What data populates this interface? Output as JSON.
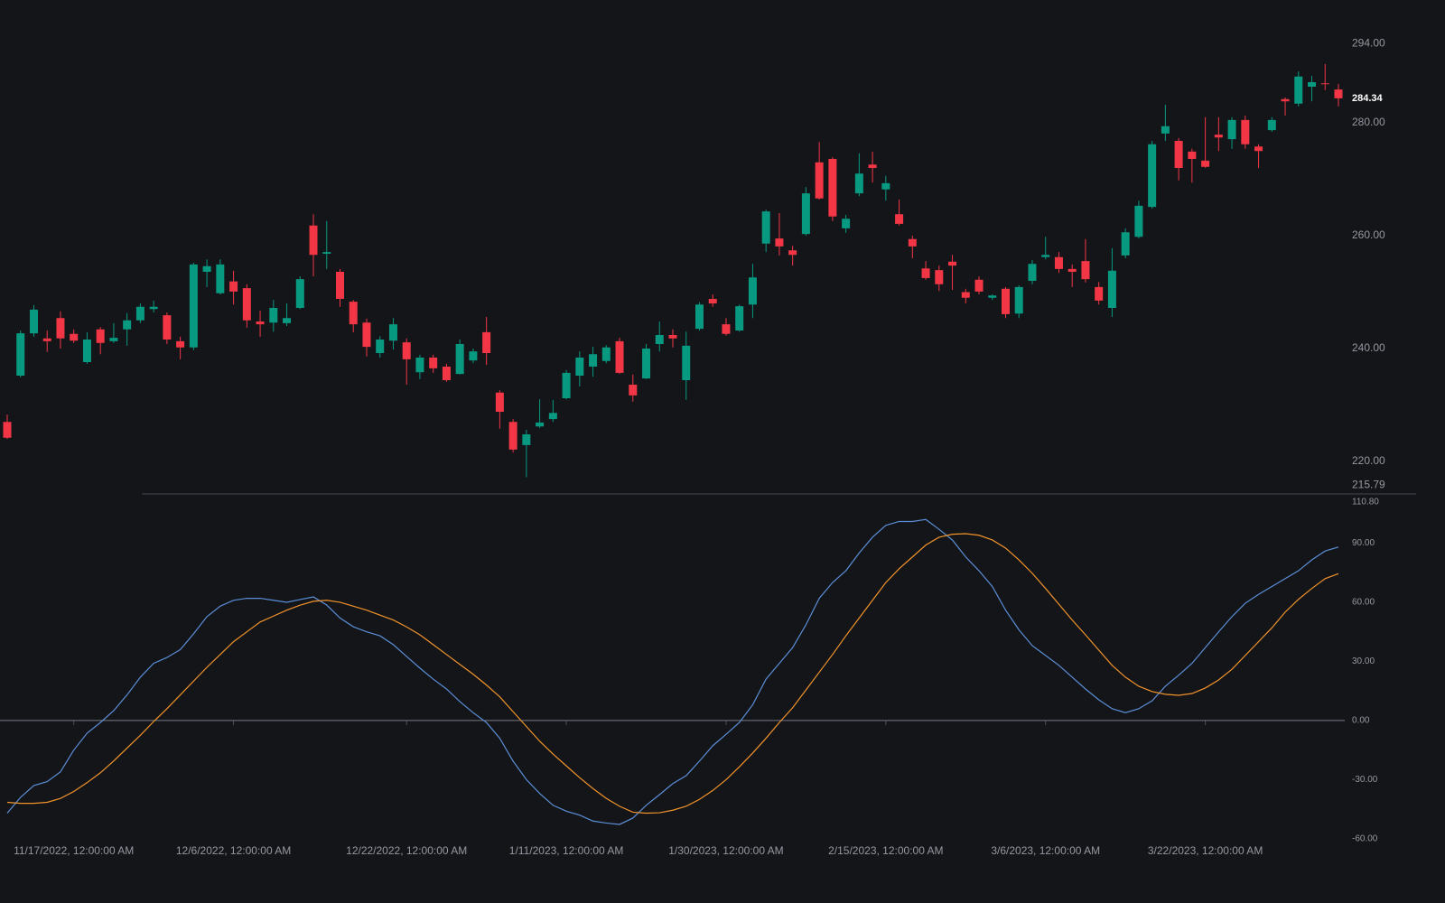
{
  "chart_data": [
    {
      "type": "candlestick",
      "categories": [
        null,
        null,
        null,
        null,
        null,
        "11/17/2022, 12:00:00 AM",
        null,
        null,
        null,
        null,
        null,
        null,
        null,
        null,
        null,
        null,
        null,
        "12/6/2022, 12:00:00 AM",
        null,
        null,
        null,
        null,
        null,
        null,
        null,
        null,
        null,
        null,
        null,
        null,
        "12/22/2022, 12:00:00 AM",
        null,
        null,
        null,
        null,
        null,
        null,
        null,
        null,
        null,
        null,
        null,
        "1/11/2023, 12:00:00 AM",
        null,
        null,
        null,
        null,
        null,
        null,
        null,
        null,
        null,
        null,
        null,
        "1/30/2023, 12:00:00 AM",
        null,
        null,
        null,
        null,
        null,
        null,
        null,
        null,
        null,
        null,
        null,
        "2/15/2023, 12:00:00 AM",
        null,
        null,
        null,
        null,
        null,
        null,
        null,
        null,
        null,
        null,
        null,
        "3/6/2023, 12:00:00 AM",
        null,
        null,
        null,
        null,
        null,
        null,
        null,
        null,
        null,
        null,
        null,
        "3/22/2023, 12:00:00 AM",
        null,
        null,
        null,
        null,
        null,
        null,
        null,
        null,
        null,
        null
      ],
      "open": [
        227.0,
        235.2,
        242.7,
        241.8,
        245.4,
        242.6,
        237.6,
        243.4,
        241.3,
        243.4,
        245.0,
        247.0,
        245.9,
        241.3,
        240.2,
        253.6,
        249.8,
        251.9,
        250.7,
        244.8,
        244.6,
        244.5,
        247.2,
        261.8,
        256.8,
        253.6,
        248.3,
        244.6,
        239.2,
        241.4,
        241.1,
        235.8,
        238.4,
        236.8,
        235.5,
        237.9,
        242.9,
        232.2,
        227.0,
        222.9,
        226.2,
        227.5,
        231.2,
        235.2,
        236.8,
        237.8,
        241.3,
        233.6,
        234.7,
        240.8,
        242.4,
        234.4,
        243.5,
        248.8,
        244.3,
        243.2,
        247.8,
        258.6,
        259.5,
        257.4,
        260.3,
        273.0,
        273.6,
        261.3,
        267.5,
        272.6,
        268.2,
        263.8,
        259.4,
        254.2,
        253.9,
        255.4,
        250.0,
        252.2,
        249.0,
        250.6,
        246.2,
        252.0,
        256.2,
        256.2,
        254.1,
        255.5,
        250.9,
        247.2,
        256.5,
        259.8,
        265.1,
        278.1,
        276.8,
        274.9,
        273.3,
        277.9,
        277.1,
        280.5,
        275.8,
        278.7,
        284.2,
        283.4,
        286.4,
        287.0,
        285.9
      ],
      "high": [
        228.3,
        243.2,
        247.7,
        243.2,
        246.6,
        243.4,
        242.9,
        243.8,
        244.5,
        246.3,
        248.0,
        248.5,
        246.4,
        242.1,
        255.2,
        255.8,
        255.8,
        253.8,
        251.4,
        246.7,
        248.6,
        248.0,
        252.8,
        263.8,
        262.6,
        254.1,
        248.6,
        245.3,
        242.2,
        245.4,
        241.8,
        238.9,
        238.9,
        237.3,
        241.6,
        240.0,
        245.6,
        232.6,
        227.5,
        225.6,
        231.0,
        230.9,
        236.2,
        239.5,
        240.3,
        240.6,
        241.9,
        235.4,
        240.8,
        244.8,
        243.4,
        243.0,
        248.2,
        249.6,
        245.4,
        247.8,
        255.0,
        264.6,
        264.0,
        258.2,
        268.6,
        276.6,
        273.9,
        263.7,
        274.6,
        274.9,
        270.6,
        266.4,
        260.0,
        255.5,
        254.7,
        256.6,
        250.6,
        252.8,
        249.6,
        250.9,
        251.2,
        255.7,
        259.8,
        257.1,
        254.9,
        259.4,
        251.8,
        257.8,
        261.3,
        266.2,
        276.8,
        283.2,
        277.3,
        275.4,
        281.0,
        281.0,
        281.0,
        281.3,
        276.2,
        281.0,
        284.5,
        289.1,
        288.3,
        290.4,
        286.9
      ],
      "low": [
        224.0,
        234.9,
        242.1,
        239.4,
        240.0,
        241.0,
        237.3,
        239.0,
        241.0,
        240.5,
        244.5,
        246.4,
        240.8,
        238.1,
        239.7,
        250.9,
        249.6,
        247.8,
        243.7,
        242.1,
        243.0,
        244.0,
        247.0,
        252.8,
        254.1,
        247.4,
        242.9,
        238.6,
        238.4,
        239.8,
        233.6,
        234.6,
        235.7,
        234.1,
        235.4,
        237.4,
        237.1,
        225.8,
        221.6,
        217.2,
        225.9,
        227.0,
        231.0,
        233.3,
        235.0,
        237.4,
        235.5,
        230.6,
        234.6,
        239.5,
        240.2,
        230.9,
        243.2,
        247.4,
        242.3,
        243.0,
        245.4,
        257.1,
        256.5,
        254.7,
        260.0,
        266.4,
        262.6,
        260.5,
        267.0,
        269.4,
        266.2,
        261.8,
        256.0,
        252.2,
        250.2,
        250.4,
        248.0,
        249.6,
        248.6,
        245.4,
        245.4,
        251.4,
        255.8,
        253.4,
        250.9,
        251.7,
        247.8,
        245.6,
        256.0,
        259.5,
        264.8,
        276.8,
        269.8,
        269.4,
        272.0,
        275.0,
        275.4,
        275.4,
        272.0,
        278.4,
        281.3,
        282.9,
        283.8,
        285.8,
        282.9
      ],
      "close": [
        224.2,
        242.7,
        246.9,
        241.3,
        241.8,
        241.4,
        241.6,
        241.0,
        241.9,
        245.0,
        247.4,
        247.4,
        241.6,
        240.2,
        254.9,
        254.6,
        254.9,
        250.1,
        245.0,
        244.3,
        247.2,
        245.4,
        252.3,
        256.6,
        257.1,
        248.8,
        244.3,
        240.3,
        241.6,
        244.3,
        238.1,
        238.4,
        236.5,
        234.4,
        240.8,
        239.5,
        239.2,
        228.8,
        222.1,
        224.8,
        226.9,
        228.6,
        235.7,
        238.4,
        239.0,
        240.2,
        235.7,
        231.7,
        240.0,
        242.4,
        241.8,
        240.5,
        247.8,
        248.0,
        242.6,
        247.5,
        252.6,
        264.3,
        258.1,
        256.6,
        267.5,
        266.6,
        263.4,
        263.0,
        271.0,
        272.0,
        269.3,
        262.1,
        258.1,
        252.5,
        251.4,
        254.7,
        249.0,
        250.1,
        249.4,
        246.1,
        250.9,
        255.0,
        256.6,
        254.1,
        253.6,
        252.3,
        248.5,
        253.8,
        260.6,
        265.3,
        276.2,
        279.4,
        272.0,
        273.6,
        272.2,
        277.4,
        280.5,
        276.2,
        275.0,
        280.5,
        283.8,
        288.2,
        287.2,
        286.9,
        284.34
      ],
      "up_color": "#089981",
      "down_color": "#f23645",
      "ylim": [
        214.4,
        301.76
      ],
      "yticks": [
        {
          "value": 294,
          "label": "294.00"
        },
        {
          "value": 280,
          "label": "280.00"
        },
        {
          "value": 260,
          "label": "260.00"
        },
        {
          "value": 240,
          "label": "240.00"
        },
        {
          "value": 220,
          "label": "220.00"
        },
        {
          "value": 215.79,
          "label": "215.79"
        }
      ],
      "last_price": {
        "value": 284.34,
        "label": "284.34"
      }
    },
    {
      "type": "line",
      "series": [
        {
          "color": "#5b8ed6",
          "values": [
            -47,
            -39,
            -33,
            -31,
            -26,
            -15,
            -6.4,
            -1,
            5,
            13,
            22,
            29,
            32,
            36,
            44,
            52.7,
            58,
            61,
            62,
            62,
            61,
            60,
            61.4,
            62.7,
            58.6,
            52,
            47.6,
            45,
            43,
            38.5,
            32.5,
            26.6,
            21,
            16,
            9.6,
            4,
            -1,
            -9,
            -20.6,
            -30,
            -37,
            -43,
            -46,
            -48,
            -51,
            -52,
            -52.7,
            -49.5,
            -43,
            -37.6,
            -32,
            -28,
            -20.6,
            -12.8,
            -7,
            -1,
            8,
            21,
            29,
            37,
            48.6,
            62,
            70,
            76,
            85,
            93,
            99,
            101,
            101,
            102,
            97,
            91.6,
            83,
            76,
            68,
            56,
            46,
            38,
            33,
            28,
            22,
            16,
            10.5,
            6,
            4,
            6,
            10,
            17.4,
            23,
            29,
            37,
            45,
            52.7,
            59.5,
            64,
            68,
            72,
            76,
            81.5,
            86,
            88
          ]
        },
        {
          "color": "#f0932b",
          "values": [
            -41.5,
            -42,
            -42,
            -41.5,
            -39.5,
            -36,
            -31.5,
            -26.5,
            -20.5,
            -14,
            -7.5,
            -0.5,
            6,
            13,
            20,
            27,
            33.5,
            40,
            45,
            50,
            53,
            56,
            58.5,
            60.5,
            61,
            60,
            58,
            56,
            53.5,
            51,
            47.5,
            43.5,
            38.5,
            33.5,
            28.5,
            23.5,
            18,
            12,
            4.5,
            -3,
            -10.5,
            -17,
            -23,
            -29,
            -34.5,
            -39.5,
            -43.5,
            -46.5,
            -47,
            -46.8,
            -45.5,
            -43.5,
            -40,
            -35.5,
            -30,
            -23.5,
            -16.5,
            -9,
            -1,
            6.5,
            15.5,
            24.5,
            33.5,
            43,
            52,
            61,
            70,
            77,
            83,
            89,
            93,
            94.5,
            94.8,
            94,
            91.6,
            87.5,
            81.5,
            74.7,
            67,
            59,
            51,
            43.5,
            35.7,
            28,
            22,
            17.4,
            14.7,
            13.3,
            12.8,
            13.7,
            16.5,
            20.6,
            26,
            33,
            40,
            47,
            55,
            61.5,
            67,
            72,
            74.5
          ]
        }
      ],
      "ylim": [
        -62.8,
        114.5
      ],
      "yticks": [
        {
          "value": 110.8,
          "label": "110.80"
        },
        {
          "value": 90,
          "label": "90.00"
        },
        {
          "value": 60,
          "label": "60.00"
        },
        {
          "value": 30,
          "label": "30.00"
        },
        {
          "value": 0,
          "label": "0.00"
        },
        {
          "value": -30,
          "label": "-30.00"
        },
        {
          "value": -60,
          "label": "-60.00"
        }
      ]
    }
  ]
}
